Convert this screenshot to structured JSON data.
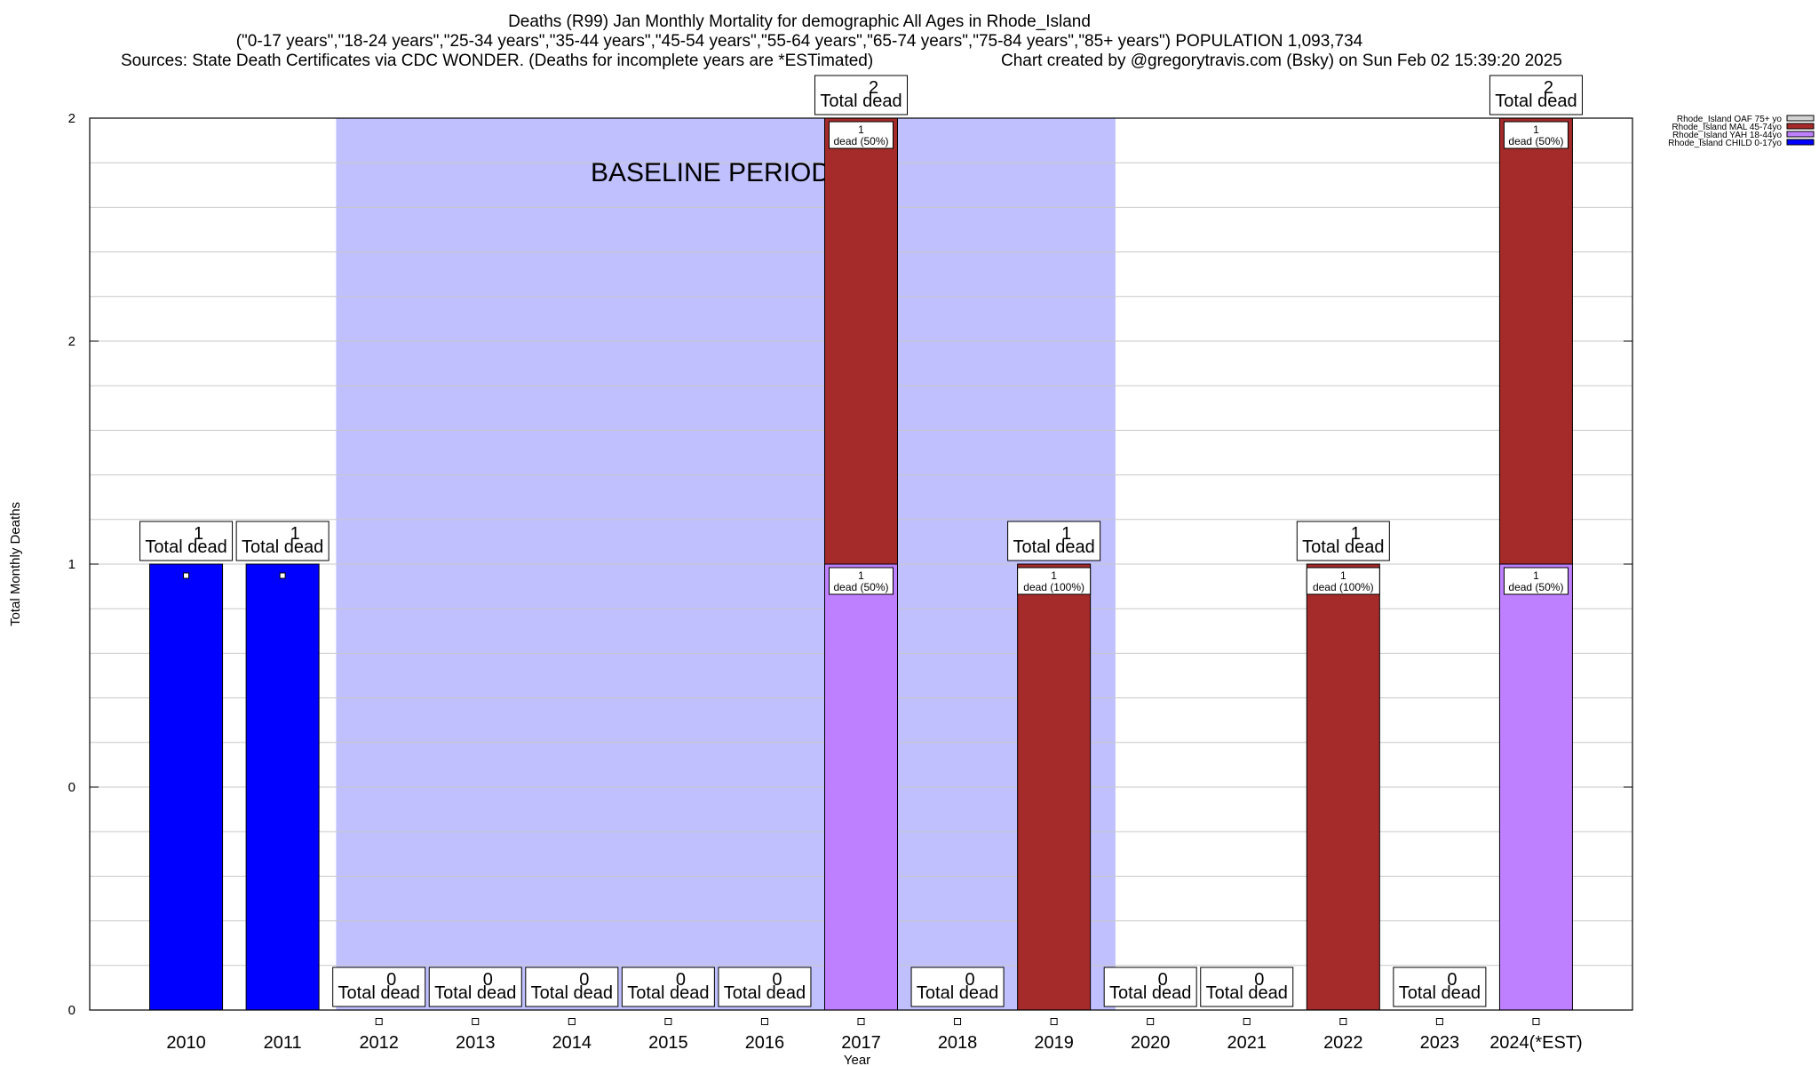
{
  "chart_data": {
    "type": "bar",
    "title": "Deaths (R99) Jan Monthly Mortality for demographic All Ages in Rhode_Island",
    "subtitle": "(\"0-17 years\",\"18-24 years\",\"25-34 years\",\"35-44 years\",\"45-54 years\",\"55-64 years\",\"65-74 years\",\"75-84 years\",\"85+ years\") POPULATION 1,093,734",
    "sources": "Sources: State Death Certificates via CDC WONDER. (Deaths for incomplete years are *ESTimated)",
    "credit": "Chart created by @gregorytravis.com (Bsky) on Sun Feb 02 15:39:20 2025",
    "xlabel": "Year",
    "ylabel": "Total Monthly Deaths",
    "y_tick_labels": [
      "0",
      "0",
      "1",
      "2",
      "2"
    ],
    "ylim": [
      0,
      2
    ],
    "grid": true,
    "baseline_label": "BASELINE PERIOD",
    "baseline_range": [
      "2012",
      "2019"
    ],
    "categories": [
      "2010",
      "2011",
      "2012",
      "2013",
      "2014",
      "2015",
      "2016",
      "2017",
      "2018",
      "2019",
      "2020",
      "2021",
      "2022",
      "2023",
      "2024(*EST)"
    ],
    "totals": [
      1,
      1,
      0,
      0,
      0,
      0,
      0,
      2,
      0,
      1,
      0,
      0,
      1,
      0,
      2
    ],
    "total_label_suffix": "Total dead",
    "legend_position": "top-right",
    "series": [
      {
        "name": "Rhode_Island CHILD 0-17yo",
        "color": "#0000ff",
        "values": [
          1,
          1,
          0,
          0,
          0,
          0,
          0,
          0,
          0,
          0,
          0,
          0,
          0,
          0,
          0
        ]
      },
      {
        "name": "Rhode_Island YAH 18-44yo",
        "color": "#bf80ff",
        "values": [
          0,
          0,
          0,
          0,
          0,
          0,
          0,
          1,
          0,
          0,
          0,
          0,
          0,
          0,
          1
        ]
      },
      {
        "name": "Rhode_Island MAL 45-74yo",
        "color": "#a52a2a",
        "values": [
          0,
          0,
          0,
          0,
          0,
          0,
          0,
          1,
          0,
          1,
          0,
          0,
          1,
          0,
          1
        ]
      },
      {
        "name": "Rhode_Island OAF 75+ yo",
        "color": "#d3d3d3",
        "values": [
          0,
          0,
          0,
          0,
          0,
          0,
          0,
          0,
          0,
          0,
          0,
          0,
          0,
          0,
          0
        ]
      }
    ],
    "segment_labels": [
      {
        "category": "2017",
        "series": "Rhode_Island YAH 18-44yo",
        "count": "1",
        "text": "dead (50%)"
      },
      {
        "category": "2017",
        "series": "Rhode_Island MAL 45-74yo",
        "count": "1",
        "text": "dead (50%)"
      },
      {
        "category": "2019",
        "series": "Rhode_Island MAL 45-74yo",
        "count": "1",
        "text": "dead (100%)"
      },
      {
        "category": "2022",
        "series": "Rhode_Island MAL 45-74yo",
        "count": "1",
        "text": "dead (100%)"
      },
      {
        "category": "2024(*EST)",
        "series": "Rhode_Island YAH 18-44yo",
        "count": "1",
        "text": "dead (50%)"
      },
      {
        "category": "2024(*EST)",
        "series": "Rhode_Island MAL 45-74yo",
        "count": "1",
        "text": "dead (50%)"
      }
    ]
  }
}
